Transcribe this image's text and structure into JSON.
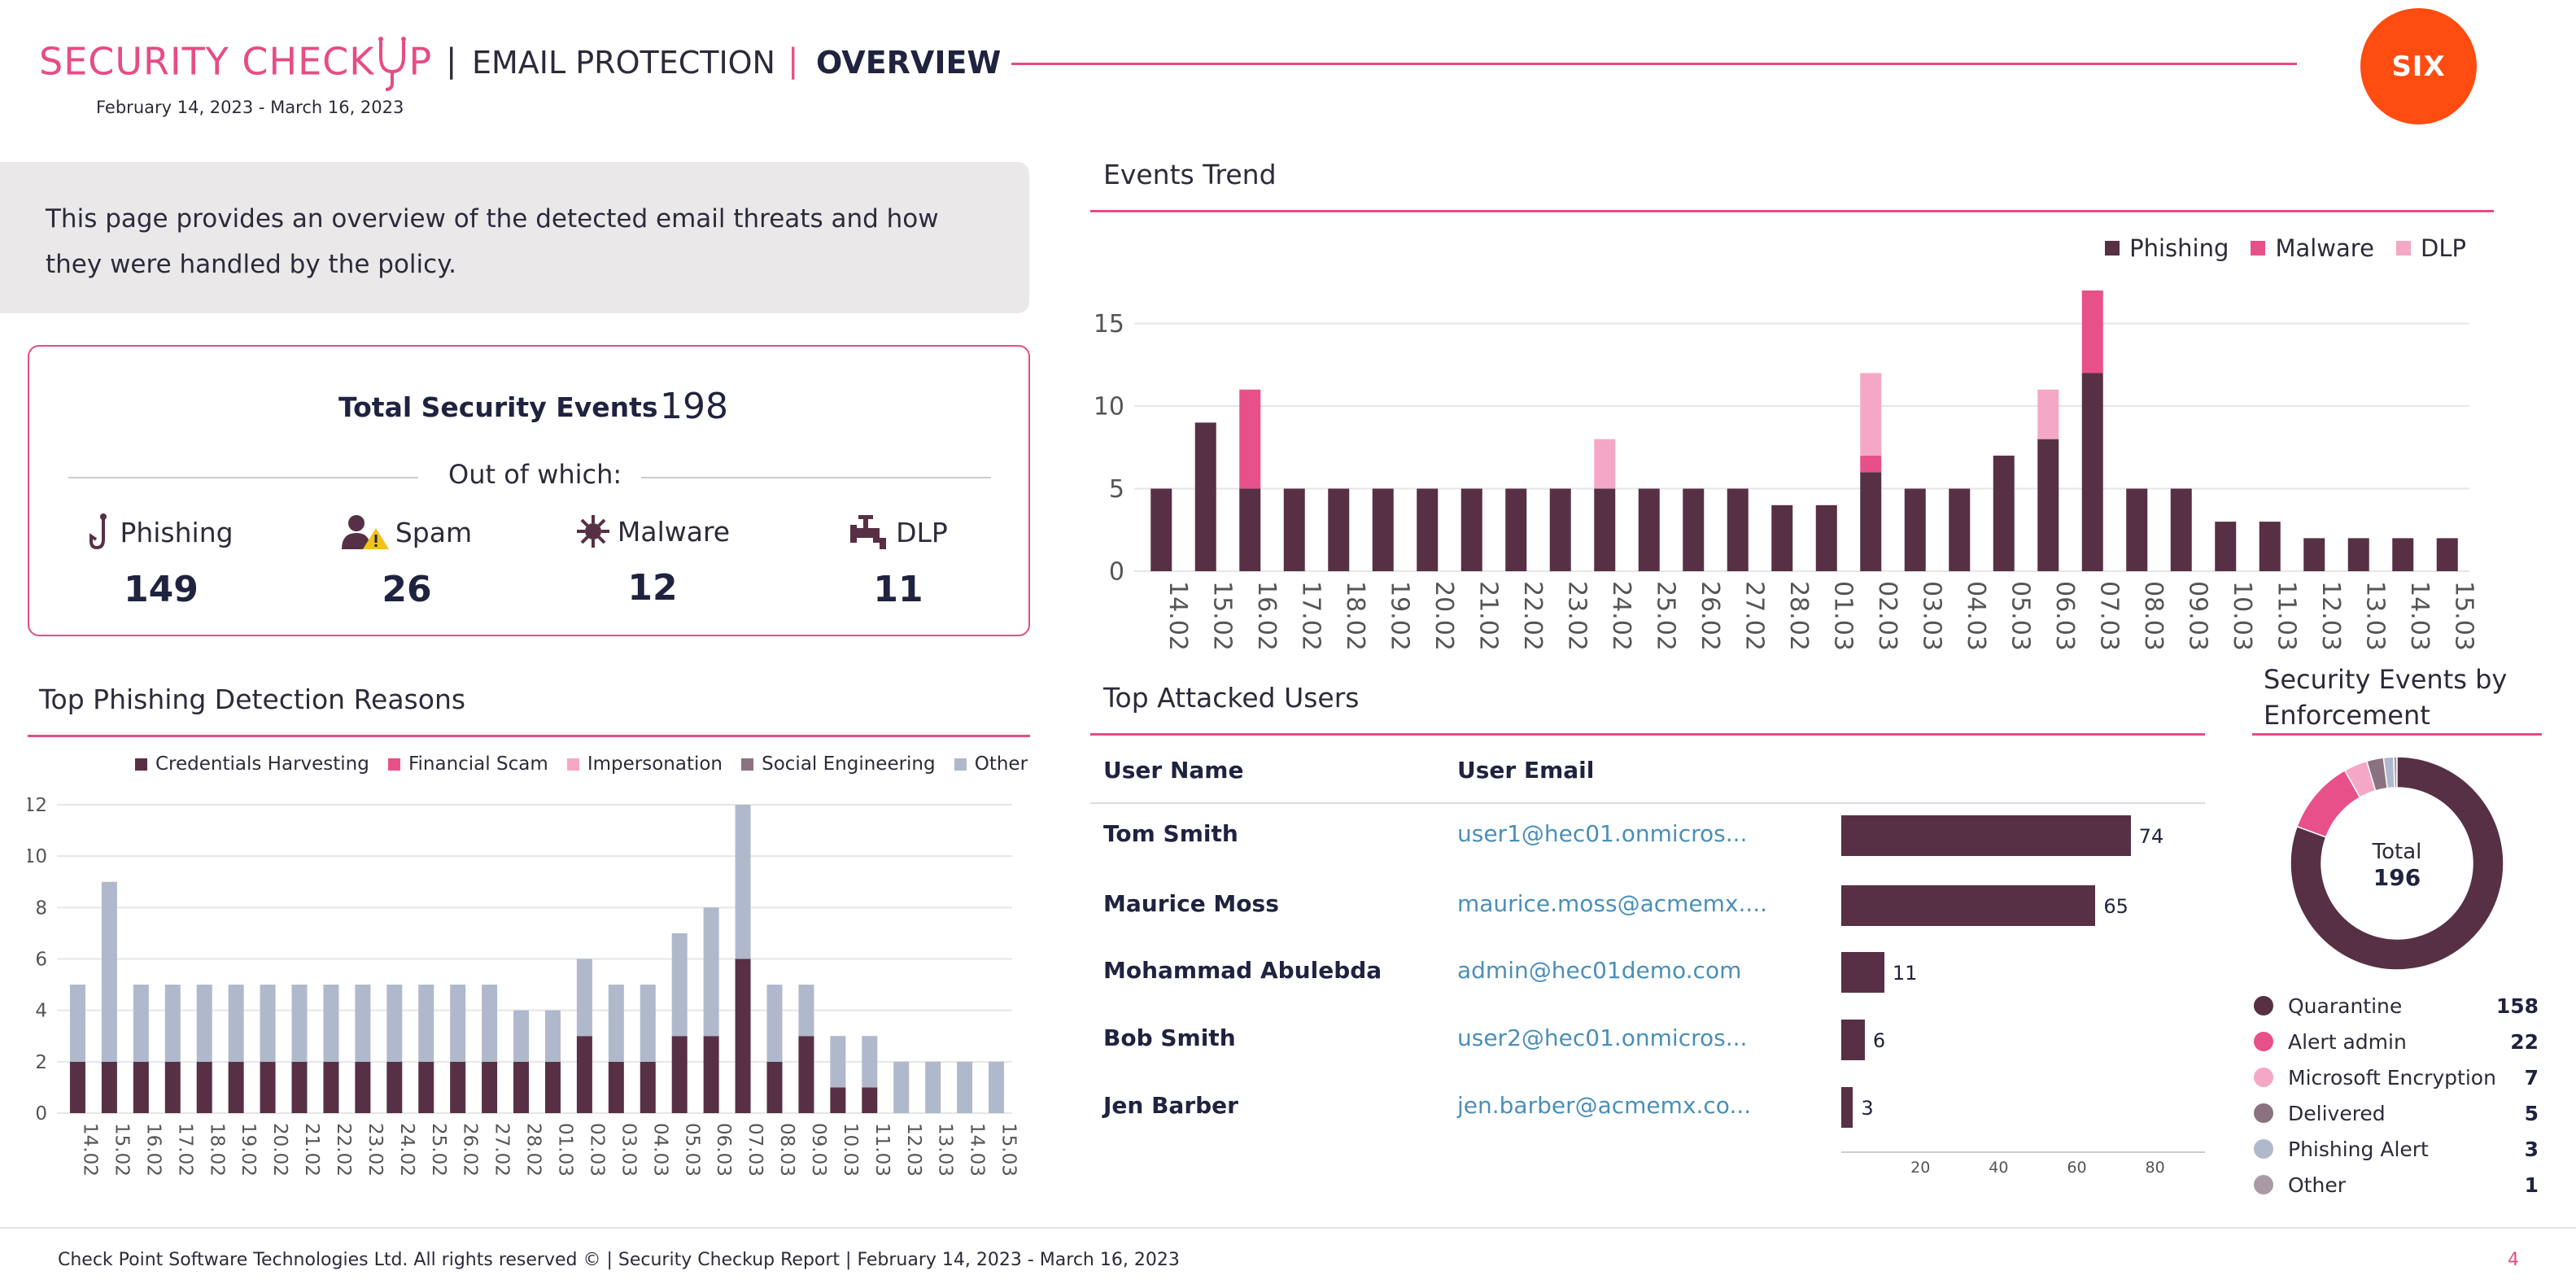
{
  "header": {
    "brand": "SECURITY CHECK",
    "brand_tail": "P",
    "sep": "|",
    "section": "EMAIL PROTECTION",
    "page": "OVERVIEW",
    "date_range": "February 14, 2023 - March 16, 2023",
    "logo_text": "SIX"
  },
  "intro": {
    "text": "This page provides an overview of the detected email threats and how they were handled by the policy."
  },
  "summary": {
    "title": "Total Security Events",
    "total": "198",
    "out_of_which": "Out of which:",
    "categories": [
      {
        "label": "Phishing",
        "value": "149",
        "icon": "hook-icon"
      },
      {
        "label": "Spam",
        "value": "26",
        "icon": "spam-user-icon"
      },
      {
        "label": "Malware",
        "value": "12",
        "icon": "virus-icon"
      },
      {
        "label": "DLP",
        "value": "11",
        "icon": "faucet-icon"
      }
    ]
  },
  "colors": {
    "phishing": "#573045",
    "malware": "#e8508a",
    "dlp": "#f5a8c6",
    "credentials": "#573045",
    "financial": "#e8508a",
    "impersonation": "#f5a8c6",
    "social": "#8a7280",
    "other": "#b0b8cc",
    "accent": "#e64c85"
  },
  "events_trend": {
    "title": "Events Trend",
    "chart_data": {
      "type": "bar",
      "stacked": true,
      "categories": [
        "14.02",
        "15.02",
        "16.02",
        "17.02",
        "18.02",
        "19.02",
        "20.02",
        "21.02",
        "22.02",
        "23.02",
        "24.02",
        "25.02",
        "26.02",
        "27.02",
        "28.02",
        "01.03",
        "02.03",
        "03.03",
        "04.03",
        "05.03",
        "06.03",
        "07.03",
        "08.03",
        "09.03",
        "10.03",
        "11.03",
        "12.03",
        "13.03",
        "14.03",
        "15.03"
      ],
      "series": [
        {
          "name": "Phishing",
          "values": [
            5,
            9,
            5,
            5,
            5,
            5,
            5,
            5,
            5,
            5,
            5,
            5,
            5,
            5,
            4,
            4,
            6,
            5,
            5,
            7,
            8,
            12,
            5,
            5,
            3,
            3,
            2,
            2,
            2,
            2
          ]
        },
        {
          "name": "Malware",
          "values": [
            0,
            0,
            6,
            0,
            0,
            0,
            0,
            0,
            0,
            0,
            0,
            0,
            0,
            0,
            0,
            0,
            1,
            0,
            0,
            0,
            0,
            5,
            0,
            0,
            0,
            0,
            0,
            0,
            0,
            0
          ]
        },
        {
          "name": "DLP",
          "values": [
            0,
            0,
            0,
            0,
            0,
            0,
            0,
            0,
            0,
            0,
            3,
            0,
            0,
            0,
            0,
            0,
            5,
            0,
            0,
            0,
            3,
            0,
            0,
            0,
            0,
            0,
            0,
            0,
            0,
            0
          ]
        }
      ],
      "yticks": [
        "0",
        "5",
        "10",
        "15"
      ],
      "ylim": [
        0,
        17
      ],
      "grid": true,
      "legend": "top-right"
    }
  },
  "phishing_reasons": {
    "title": "Top Phishing Detection Reasons",
    "chart_data": {
      "type": "bar",
      "stacked": true,
      "categories": [
        "14.02",
        "15.02",
        "16.02",
        "17.02",
        "18.02",
        "19.02",
        "20.02",
        "21.02",
        "22.02",
        "23.02",
        "24.02",
        "25.02",
        "26.02",
        "27.02",
        "28.02",
        "01.03",
        "02.03",
        "03.03",
        "04.03",
        "05.03",
        "06.03",
        "07.03",
        "08.03",
        "09.03",
        "10.03",
        "11.03",
        "12.03",
        "13.03",
        "14.03",
        "15.03"
      ],
      "series": [
        {
          "name": "Credentials Harvesting",
          "values": [
            2,
            2,
            2,
            2,
            2,
            2,
            2,
            2,
            2,
            2,
            2,
            2,
            2,
            2,
            2,
            2,
            3,
            2,
            2,
            3,
            3,
            6,
            2,
            3,
            1,
            1,
            0,
            0,
            0,
            0
          ]
        },
        {
          "name": "Financial Scam",
          "values": [
            0,
            0,
            0,
            0,
            0,
            0,
            0,
            0,
            0,
            0,
            0,
            0,
            0,
            0,
            0,
            0,
            0,
            0,
            0,
            0,
            0,
            0,
            0,
            0,
            0,
            0,
            0,
            0,
            0,
            0
          ]
        },
        {
          "name": "Impersonation",
          "values": [
            0,
            0,
            0,
            0,
            0,
            0,
            0,
            0,
            0,
            0,
            0,
            0,
            0,
            0,
            0,
            0,
            0,
            0,
            0,
            0,
            0,
            0,
            0,
            0,
            0,
            0,
            0,
            0,
            0,
            0
          ]
        },
        {
          "name": "Social Engineering",
          "values": [
            0,
            0,
            0,
            0,
            0,
            0,
            0,
            0,
            0,
            0,
            0,
            0,
            0,
            0,
            0,
            0,
            0,
            0,
            0,
            0,
            0,
            0,
            0,
            0,
            0,
            0,
            0,
            0,
            0,
            0
          ]
        },
        {
          "name": "Other",
          "values": [
            3,
            7,
            3,
            3,
            3,
            3,
            3,
            3,
            3,
            3,
            3,
            3,
            3,
            3,
            2,
            2,
            3,
            3,
            3,
            4,
            5,
            6,
            3,
            2,
            2,
            2,
            2,
            2,
            2,
            2
          ]
        }
      ],
      "yticks": [
        "0",
        "2",
        "4",
        "6",
        "8",
        "10",
        "12"
      ],
      "ylim": [
        0,
        12
      ],
      "grid": true,
      "legend": "top"
    }
  },
  "top_users": {
    "title": "Top Attacked Users",
    "col_name": "User Name",
    "col_email": "User Email",
    "rows": [
      {
        "name": "Tom Smith",
        "email": "user1@hec01.onmicros...",
        "count": 74
      },
      {
        "name": "Maurice Moss",
        "email": "maurice.moss@acmemx....",
        "count": 65
      },
      {
        "name": "Mohammad Abulebda",
        "email": "admin@hec01demo.com",
        "count": 11
      },
      {
        "name": "Bob Smith",
        "email": "user2@hec01.onmicros...",
        "count": 6
      },
      {
        "name": "Jen Barber",
        "email": "jen.barber@acmemx.co...",
        "count": 3
      }
    ],
    "axis_ticks": [
      "20",
      "40",
      "60",
      "80"
    ],
    "axis_max": 93
  },
  "enforcement": {
    "title_line1": "Security Events by",
    "title_line2": "Enforcement",
    "center_label": "Total",
    "center_value": "196",
    "chart_data": {
      "type": "pie",
      "donut": true,
      "labels": [
        "Quarantine",
        "Alert admin",
        "Microsoft Encryption",
        "Delivered",
        "Phishing Alert",
        "Other"
      ],
      "values": [
        158,
        22,
        7,
        5,
        3,
        1
      ],
      "colors": [
        "#573045",
        "#e8508a",
        "#f5a8c6",
        "#8a7280",
        "#b0b8cc",
        "#ab9aa6"
      ]
    },
    "legend": [
      {
        "label": "Quarantine",
        "value": "158",
        "color": "#573045"
      },
      {
        "label": "Alert admin",
        "value": "22",
        "color": "#e8508a"
      },
      {
        "label": "Microsoft Encryption",
        "value": "7",
        "color": "#f5a8c6"
      },
      {
        "label": "Delivered",
        "value": "5",
        "color": "#8a7280"
      },
      {
        "label": "Phishing Alert",
        "value": "3",
        "color": "#b0b8cc"
      },
      {
        "label": "Other",
        "value": "1",
        "color": "#ab9aa6"
      }
    ]
  },
  "footer": {
    "text": "Check Point Software Technologies Ltd. All rights reserved © | Security Checkup Report | February 14, 2023 - March 16, 2023",
    "page_number": "4"
  }
}
